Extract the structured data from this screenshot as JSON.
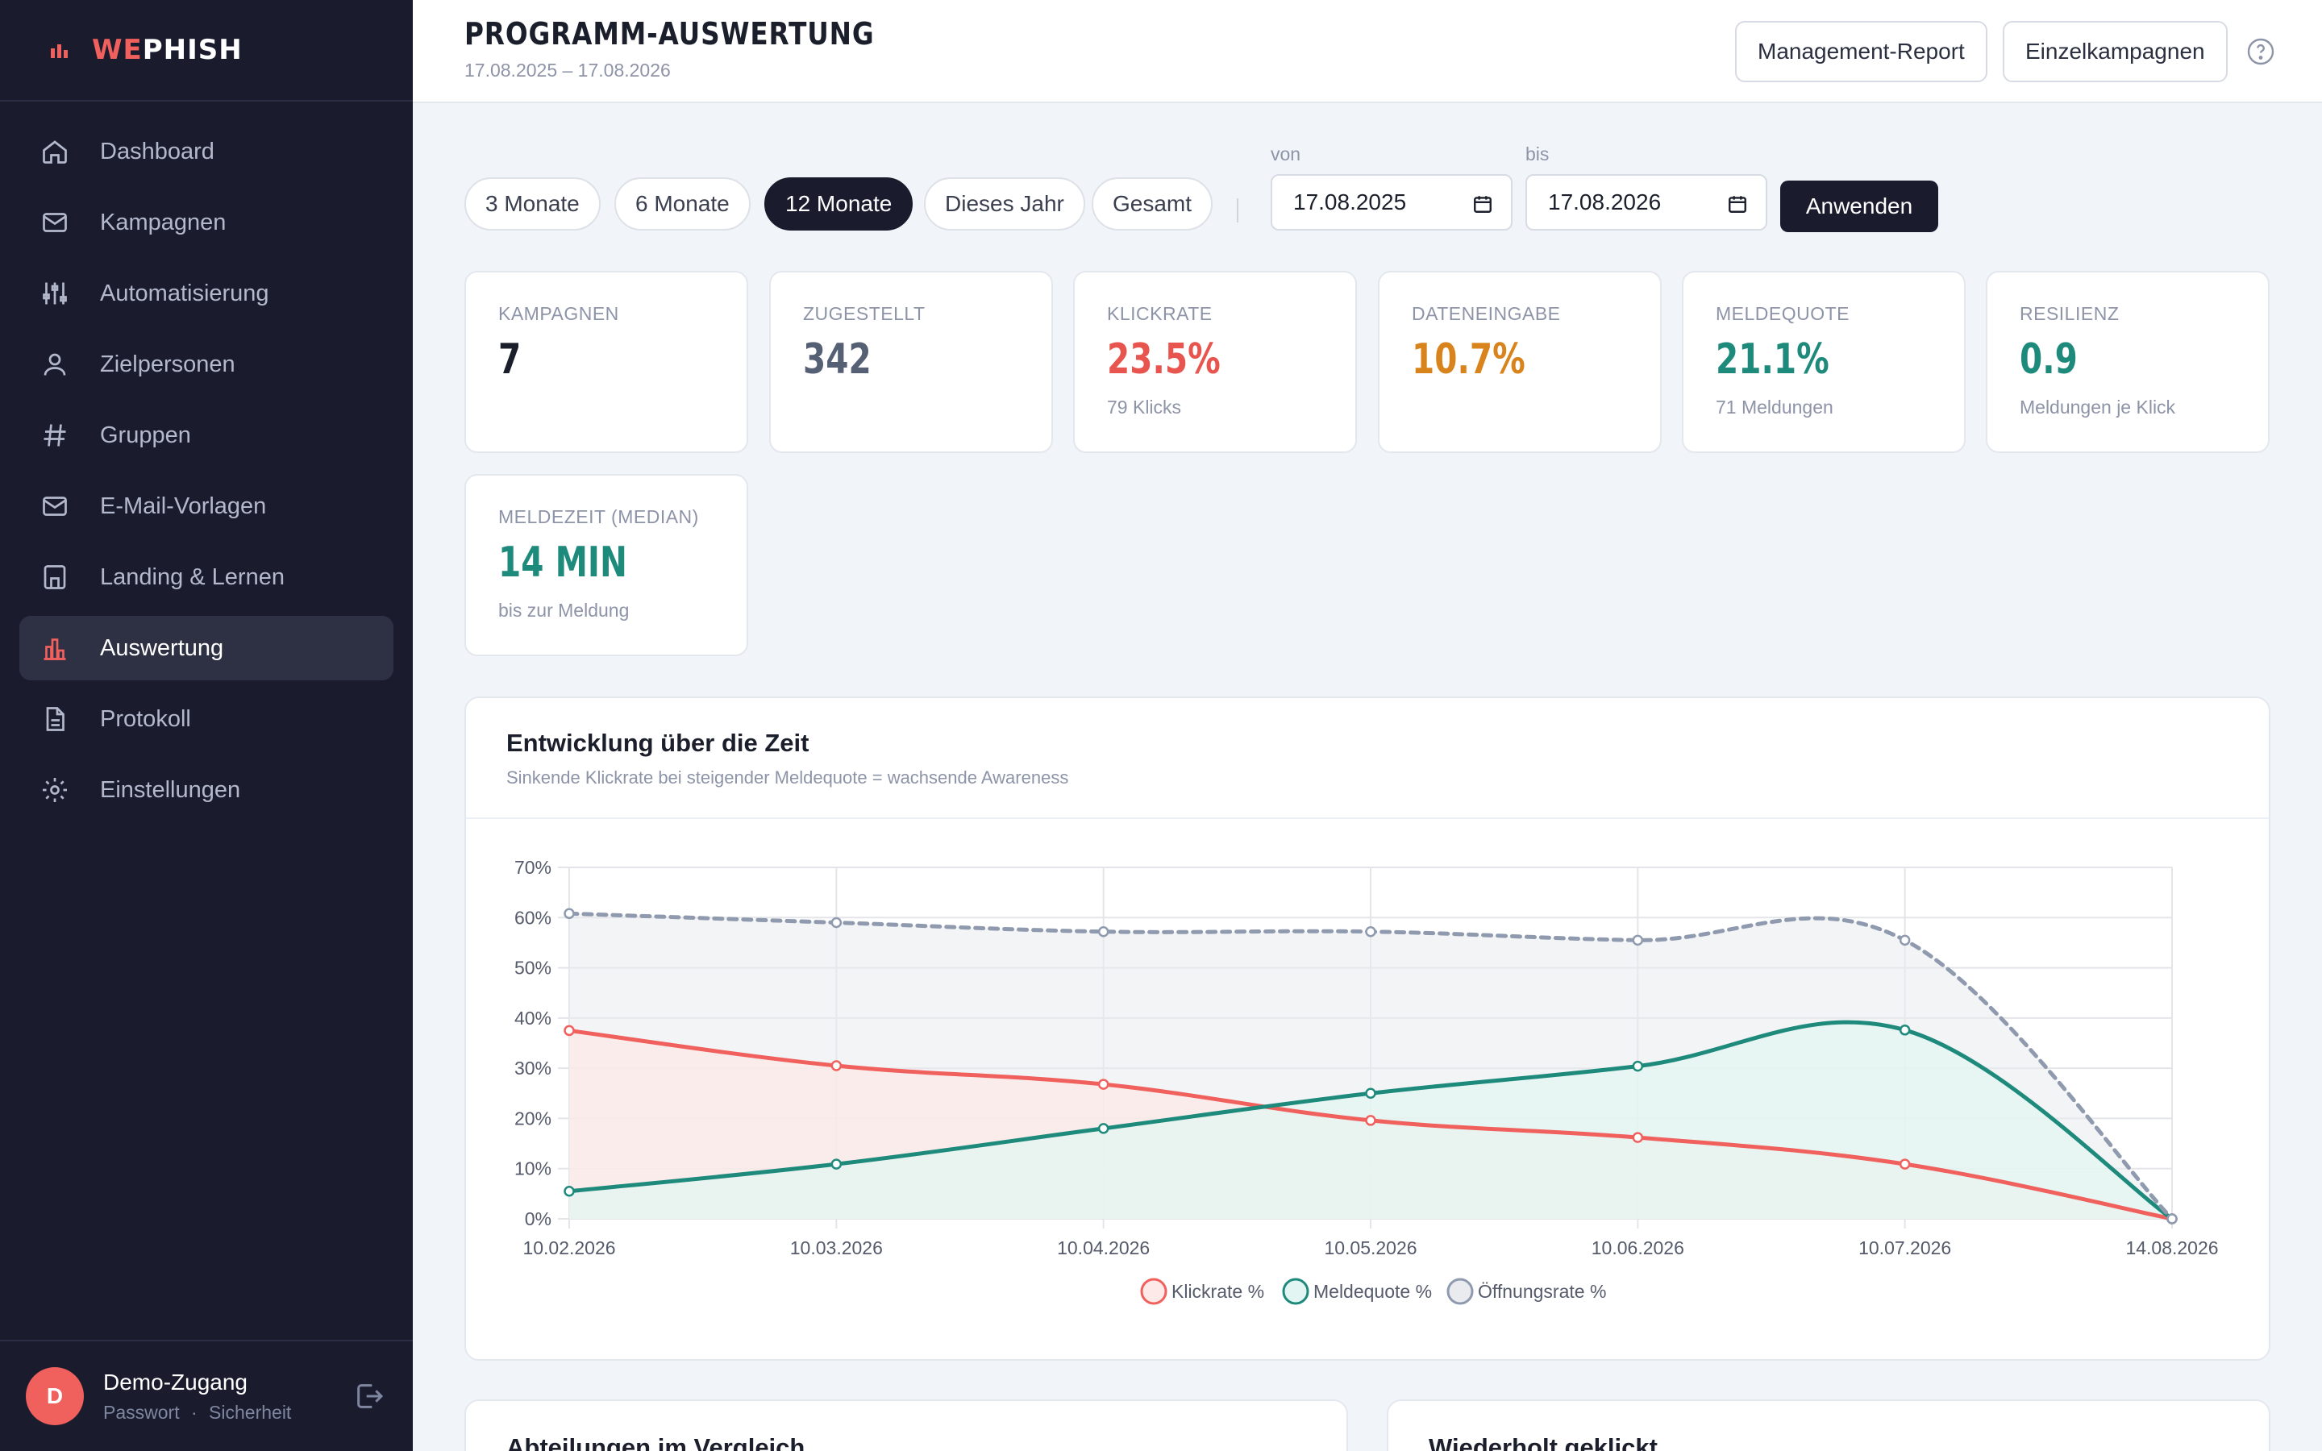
{
  "brand": {
    "prefix": "WE",
    "suffix": "PHISH",
    "logo_icon": "bar-chart-logo-icon"
  },
  "sidebar": {
    "items": [
      {
        "label": "Dashboard",
        "icon": "home-icon"
      },
      {
        "label": "Kampagnen",
        "icon": "envelope-icon"
      },
      {
        "label": "Automatisierung",
        "icon": "sliders-icon"
      },
      {
        "label": "Zielpersonen",
        "icon": "user-icon"
      },
      {
        "label": "Gruppen",
        "icon": "hash-icon"
      },
      {
        "label": "E-Mail-Vorlagen",
        "icon": "envelope-icon"
      },
      {
        "label": "Landing & Lernen",
        "icon": "page-icon"
      },
      {
        "label": "Auswertung",
        "icon": "bar-chart-icon",
        "active": true
      },
      {
        "label": "Protokoll",
        "icon": "document-icon"
      },
      {
        "label": "Einstellungen",
        "icon": "gear-icon"
      }
    ]
  },
  "user": {
    "initial": "D",
    "name": "Demo-Zugang",
    "link_password": "Passwort",
    "link_security": "Sicherheit",
    "separator": "·"
  },
  "header": {
    "title": "PROGRAMM-AUSWERTUNG",
    "date_range": "17.08.2025 – 17.08.2026",
    "btn_report": "Management-Report",
    "btn_single": "Einzelkampagnen"
  },
  "filters": {
    "periods": [
      "3 Monate",
      "6 Monate",
      "12 Monate",
      "Dieses Jahr",
      "Gesamt"
    ],
    "active_period": "12 Monate",
    "from_label": "von",
    "to_label": "bis",
    "from_value": "17.08.2025",
    "to_value": "17.08.2026",
    "apply": "Anwenden"
  },
  "kpis": [
    {
      "label": "KAMPAGNEN",
      "value": "7",
      "sub": "",
      "color": "#1b1f2b"
    },
    {
      "label": "ZUGESTELLT",
      "value": "342",
      "sub": "",
      "color": "#566075"
    },
    {
      "label": "KLICKRATE",
      "value": "23.5%",
      "sub": "79 Klicks",
      "color": "#e8554f"
    },
    {
      "label": "DATENEINGABE",
      "value": "10.7%",
      "sub": "",
      "color": "#d9831d"
    },
    {
      "label": "MELDEQUOTE",
      "value": "21.1%",
      "sub": "71 Meldungen",
      "color": "#1e8a7c"
    },
    {
      "label": "RESILIENZ",
      "value": "0.9",
      "sub": "Meldungen je Klick",
      "color": "#1e8a7c"
    },
    {
      "label": "MELDEZEIT (MEDIAN)",
      "value": "14 MIN",
      "sub": "bis zur Meldung",
      "color": "#1e8a7c"
    }
  ],
  "chart_card": {
    "title": "Entwicklung über die Zeit",
    "subtitle": "Sinkende Klickrate bei steigender Meldequote = wachsende Awareness"
  },
  "chart_data": {
    "type": "line",
    "x": [
      "10.02.2026",
      "10.03.2026",
      "10.04.2026",
      "10.05.2026",
      "10.06.2026",
      "10.07.2026",
      "14.08.2026"
    ],
    "y_ticks": [
      "0%",
      "10%",
      "20%",
      "30%",
      "40%",
      "50%",
      "60%",
      "70%"
    ],
    "ylim": [
      0,
      70
    ],
    "grid": true,
    "legend": "bottom",
    "series": [
      {
        "name": "Klickrate %",
        "color": "#f0605d",
        "fill": "#fde9e8",
        "dashed": false,
        "values": [
          37.5,
          30.5,
          26.8,
          19.6,
          16.2,
          10.9,
          0
        ]
      },
      {
        "name": "Meldequote %",
        "color": "#1e8a7c",
        "fill": "#e3f5f2",
        "dashed": false,
        "values": [
          5.5,
          10.9,
          18.0,
          25.0,
          30.4,
          37.6,
          0
        ]
      },
      {
        "name": "Öffnungsrate %",
        "color": "#8f9aae",
        "fill": "#e9ebee",
        "dashed": true,
        "values": [
          60.8,
          59.0,
          57.2,
          57.2,
          55.5,
          55.5,
          0
        ]
      }
    ]
  },
  "bottom_cards": {
    "left_title": "Abteilungen im Vergleich",
    "right_title": "Wiederholt geklickt"
  }
}
